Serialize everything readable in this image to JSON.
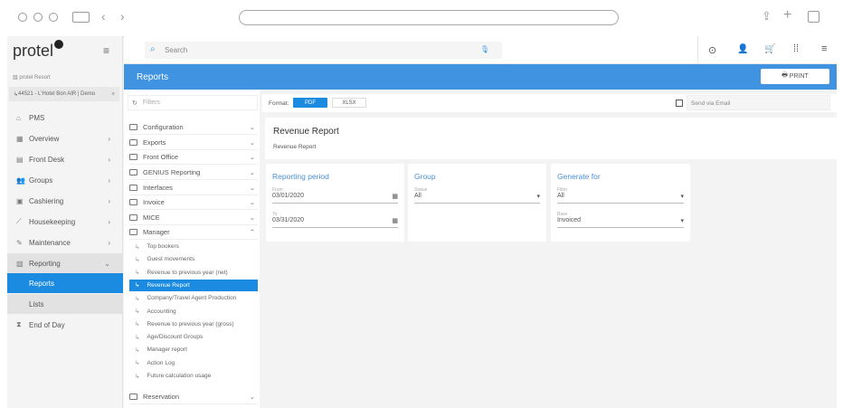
{
  "sidebar": {
    "hotel_group": "protel Resort",
    "property": "44521 - L'Hotel Bon AIR | Demo",
    "items": [
      {
        "label": "PMS",
        "icon": "home-icon"
      },
      {
        "label": "Overview",
        "icon": "grid-icon"
      },
      {
        "label": "Front Desk",
        "icon": "desk-icon"
      },
      {
        "label": "Groups",
        "icon": "people-icon"
      },
      {
        "label": "Cashiering",
        "icon": "register-icon"
      },
      {
        "label": "Housekeeping",
        "icon": "broom-icon"
      },
      {
        "label": "Maintenance",
        "icon": "wrench-icon"
      },
      {
        "label": "Reporting",
        "icon": "report-icon"
      }
    ],
    "reporting_sub": [
      "Reports",
      "Lists"
    ],
    "end_of_day": "End of Day"
  },
  "logo": "protel",
  "topbar": {
    "search_placeholder": "Search"
  },
  "header": {
    "title": "Reports",
    "print": "PRINT"
  },
  "filters": {
    "placeholder": "Filters",
    "folders": [
      "Configuration",
      "Exports",
      "Front Office",
      "GENIUS Reporting",
      "Interfaces",
      "Invoice",
      "MICE",
      "Manager"
    ],
    "manager_items": [
      "Top bookers",
      "Guest movements",
      "Revenue to previous year (net)",
      "Revenue Report",
      "Company/Travel Agent Production",
      "Accounting",
      "Revenue to previous year (gross)",
      "Age/Discount Groups",
      "Manager report",
      "Action Log",
      "Future calculation usage"
    ],
    "last_folder": "Reservation"
  },
  "format": {
    "label": "Format:",
    "options": [
      "PDF",
      "XLSX"
    ],
    "selected": "PDF",
    "email": "Send via Email"
  },
  "report": {
    "title": "Revenue Report",
    "subtitle": "Revenue Report",
    "period": {
      "title": "Reporting period",
      "from_label": "From",
      "from": "03/01/2020",
      "to_label": "To",
      "to": "03/31/2020"
    },
    "group": {
      "title": "Group",
      "status_label": "Status",
      "status": "All"
    },
    "generate": {
      "title": "Generate for",
      "filter_label": "Filter",
      "filter": "All",
      "base_label": "Base",
      "base": "Invoiced"
    }
  },
  "colors": {
    "accent": "#3f93e0",
    "selected": "#1a8be0"
  }
}
